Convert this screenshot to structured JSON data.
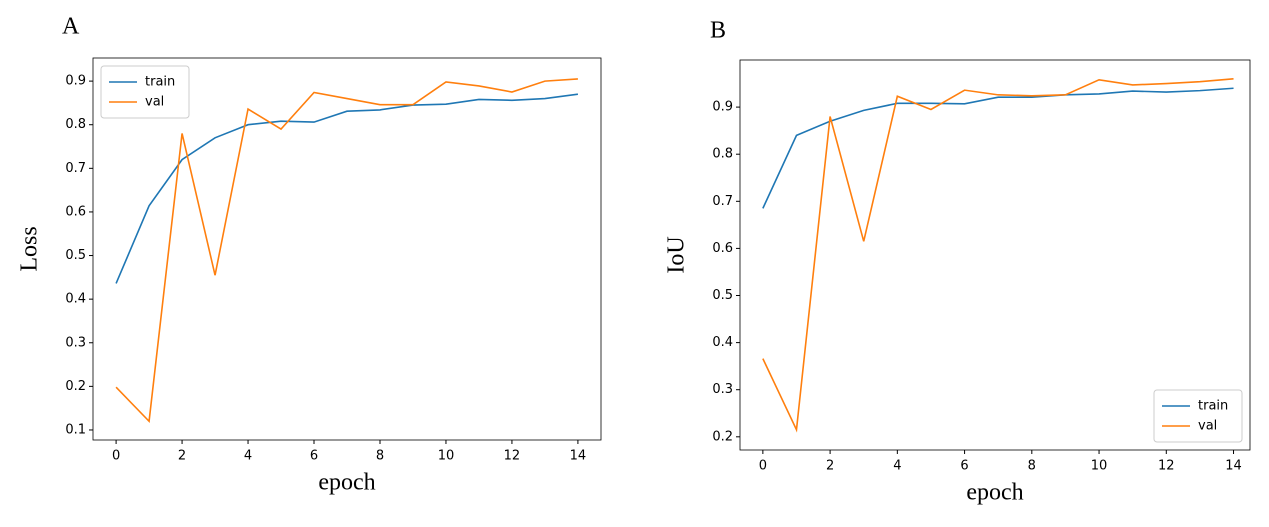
{
  "chart_data": [
    {
      "type": "line",
      "title": "A",
      "x_label": "epoch",
      "y_label": "Loss",
      "x": [
        0,
        1,
        2,
        3,
        4,
        5,
        6,
        7,
        8,
        9,
        10,
        11,
        12,
        13,
        14
      ],
      "series": [
        {
          "name": "train",
          "color": "#1f77b4",
          "values": [
            0.436,
            0.614,
            0.72,
            0.77,
            0.8,
            0.808,
            0.806,
            0.831,
            0.834,
            0.845,
            0.847,
            0.858,
            0.856,
            0.86,
            0.87
          ]
        },
        {
          "name": "val",
          "color": "#ff7f0e",
          "values": [
            0.198,
            0.12,
            0.78,
            0.455,
            0.836,
            0.79,
            0.874,
            0.86,
            0.846,
            0.846,
            0.898,
            0.889,
            0.875,
            0.9,
            0.905
          ]
        }
      ],
      "xlim": [
        -0.7,
        14.7
      ],
      "xticks": [
        0,
        2,
        4,
        6,
        8,
        10,
        12,
        14
      ],
      "ylim": [
        0.077,
        0.953
      ],
      "yticks": [
        0.1,
        0.2,
        0.3,
        0.4,
        0.5,
        0.6,
        0.7,
        0.8,
        0.9
      ],
      "legend": "upper left"
    },
    {
      "type": "line",
      "title": "B",
      "x_label": "epoch",
      "y_label": "IoU",
      "x": [
        0,
        1,
        2,
        3,
        4,
        5,
        6,
        7,
        8,
        9,
        10,
        11,
        12,
        13,
        14
      ],
      "series": [
        {
          "name": "train",
          "color": "#1f77b4",
          "values": [
            0.685,
            0.84,
            0.87,
            0.893,
            0.908,
            0.908,
            0.907,
            0.921,
            0.921,
            0.926,
            0.928,
            0.934,
            0.932,
            0.935,
            0.94
          ]
        },
        {
          "name": "val",
          "color": "#ff7f0e",
          "values": [
            0.366,
            0.215,
            0.88,
            0.615,
            0.923,
            0.895,
            0.936,
            0.926,
            0.924,
            0.926,
            0.958,
            0.947,
            0.95,
            0.954,
            0.96
          ]
        }
      ],
      "xlim": [
        -0.68,
        14.49
      ],
      "xticks": [
        0,
        2,
        4,
        6,
        8,
        10,
        12,
        14
      ],
      "ylim": [
        0.172,
        1.0
      ],
      "yticks": [
        0.2,
        0.3,
        0.4,
        0.5,
        0.6,
        0.7,
        0.8,
        0.9
      ],
      "legend": "lower right"
    }
  ]
}
